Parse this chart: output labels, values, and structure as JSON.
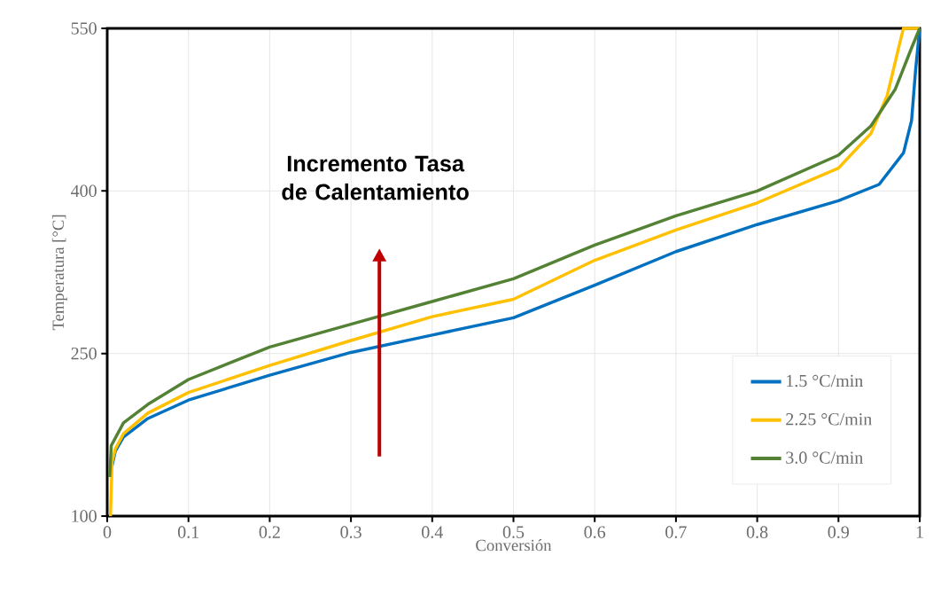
{
  "chart_data": {
    "type": "line",
    "xlabel": "Conversión",
    "ylabel": "Temperatura [°C]",
    "annotations": [
      "Incremento Tasa de Calentamiento"
    ],
    "xlim": [
      0,
      1
    ],
    "ylim": [
      100,
      550
    ],
    "xticks": [
      0,
      0.1,
      0.2,
      0.3,
      0.4,
      0.5,
      0.6,
      0.7,
      0.8,
      0.9,
      1
    ],
    "yticks": [
      100,
      250,
      400,
      550
    ],
    "grid": true,
    "legend": "bottom right",
    "line_style": "solid",
    "marker": "none",
    "series": [
      {
        "name": "1.5 °C/min",
        "color": "#0070c0",
        "x": [
          0.004,
          0.01,
          0.02,
          0.05,
          0.1,
          0.2,
          0.3,
          0.4,
          0.5,
          0.6,
          0.7,
          0.8,
          0.9,
          0.95,
          0.98,
          0.99,
          0.995,
          1.0
        ],
        "values": [
          140,
          160,
          173,
          190,
          207,
          230,
          251,
          267,
          283,
          313,
          344,
          369,
          391,
          406,
          435,
          465,
          512,
          550
        ]
      },
      {
        "name": "2.25 °C/min",
        "color": "#ffc000",
        "x": [
          0.004,
          0.006,
          0.01,
          0.02,
          0.05,
          0.1,
          0.2,
          0.3,
          0.4,
          0.5,
          0.6,
          0.7,
          0.8,
          0.9,
          0.94,
          0.96,
          0.975,
          0.98,
          1.0
        ],
        "values": [
          100,
          150,
          162,
          176,
          195,
          214,
          239,
          262,
          284,
          300,
          336,
          364,
          389,
          421,
          453,
          488,
          535,
          550,
          550
        ]
      },
      {
        "name": "3.0 °C/min",
        "color": "#548235",
        "x": [
          0.003,
          0.005,
          0.02,
          0.05,
          0.1,
          0.2,
          0.3,
          0.4,
          0.5,
          0.6,
          0.7,
          0.8,
          0.9,
          0.94,
          0.97,
          0.99,
          1.0
        ],
        "values": [
          136,
          165,
          186,
          203,
          226,
          256,
          277,
          298,
          319,
          350,
          377,
          400,
          433,
          460,
          494,
          532,
          550
        ]
      }
    ]
  }
}
